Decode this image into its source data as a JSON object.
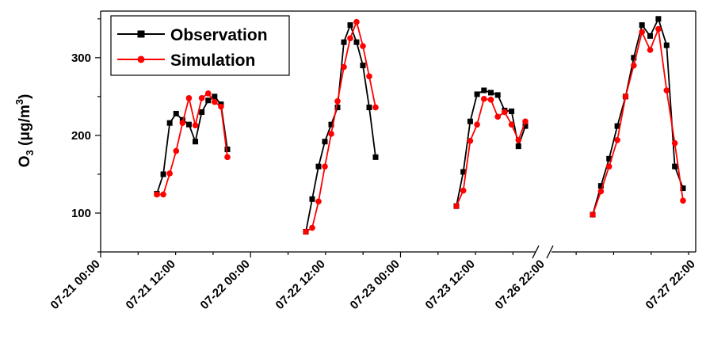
{
  "chart_data": {
    "type": "line",
    "title": "",
    "ylabel": {
      "main": "O",
      "sub": "3",
      "unit_pre": " (μg/m",
      "unit_sup": "3",
      "unit_post": ")"
    },
    "ylim": [
      50,
      360
    ],
    "yticks": [
      100,
      200,
      300
    ],
    "xlim_hours": [
      0,
      158
    ],
    "axis_break": "between 07-23 and 07-26 segments",
    "xtick_labels": [
      {
        "hour": 0,
        "label": "07-21 00:00"
      },
      {
        "hour": 24,
        "label": "07-21 12:00"
      },
      {
        "hour": 48,
        "label": "07-22 00:00"
      },
      {
        "hour": 72,
        "label": "07-22 12:00"
      },
      {
        "hour": 96,
        "label": "07-23 00:00"
      },
      {
        "hour": 120,
        "label": "07-23 12:00"
      },
      {
        "hour": 134,
        "label": "07-26 22:00"
      },
      {
        "hour": 158,
        "label": "07-27 22:00"
      }
    ],
    "legend": {
      "position": "top-left"
    },
    "series": [
      {
        "name": "Observation",
        "color": "#000000",
        "marker": "square",
        "segments": [
          [
            [
              9,
              125
            ],
            [
              10,
              150
            ],
            [
              11,
              216
            ],
            [
              12,
              228
            ],
            [
              13,
              220
            ],
            [
              14,
              214
            ],
            [
              15,
              192
            ],
            [
              16,
              230
            ],
            [
              17,
              245
            ],
            [
              18,
              250
            ],
            [
              19,
              240
            ],
            [
              20,
              182
            ]
          ],
          [
            [
              33,
              76
            ],
            [
              34,
              118
            ],
            [
              35,
              160
            ],
            [
              36,
              192
            ],
            [
              37,
              214
            ],
            [
              38,
              236
            ],
            [
              39,
              320
            ],
            [
              40,
              342
            ],
            [
              41,
              320
            ],
            [
              42,
              290
            ],
            [
              43,
              236
            ],
            [
              44,
              172
            ]
          ],
          [
            [
              57,
              109
            ],
            [
              58,
              153
            ],
            [
              59,
              218
            ],
            [
              60,
              253
            ],
            [
              61,
              258
            ],
            [
              62,
              255
            ],
            [
              63,
              252
            ],
            [
              64,
              232
            ],
            [
              65,
              231
            ],
            [
              66,
              186
            ],
            [
              67,
              212
            ]
          ],
          [
            [
              81,
              98
            ],
            [
              82,
              135
            ],
            [
              83,
              170
            ],
            [
              84,
              212
            ],
            [
              85,
              250
            ],
            [
              86,
              300
            ],
            [
              87,
              342
            ],
            [
              88,
              328
            ],
            [
              89,
              350
            ],
            [
              90,
              316
            ],
            [
              91,
              160
            ],
            [
              92,
              132
            ]
          ]
        ]
      },
      {
        "name": "Simulation",
        "color": "#ff0000",
        "marker": "circle",
        "segments": [
          [
            [
              9,
              124
            ],
            [
              10,
              124
            ],
            [
              11,
              151
            ],
            [
              12,
              180
            ],
            [
              13,
              216
            ],
            [
              14,
              248
            ],
            [
              15,
              213
            ],
            [
              16,
              248
            ],
            [
              17,
              254
            ],
            [
              18,
              243
            ],
            [
              19,
              237
            ],
            [
              20,
              172
            ]
          ],
          [
            [
              33,
              76
            ],
            [
              34,
              81
            ],
            [
              35,
              115
            ],
            [
              36,
              160
            ],
            [
              37,
              202
            ],
            [
              38,
              244
            ],
            [
              39,
              288
            ],
            [
              40,
              325
            ],
            [
              41,
              346
            ],
            [
              42,
              315
            ],
            [
              43,
              276
            ],
            [
              44,
              236
            ]
          ],
          [
            [
              57,
              109
            ],
            [
              58,
              129
            ],
            [
              59,
              193
            ],
            [
              60,
              214
            ],
            [
              61,
              247
            ],
            [
              62,
              246
            ],
            [
              63,
              224
            ],
            [
              64,
              230
            ],
            [
              65,
              214
            ],
            [
              66,
              194
            ],
            [
              67,
              218
            ]
          ],
          [
            [
              81,
              98
            ],
            [
              82,
              128
            ],
            [
              83,
              160
            ],
            [
              84,
              194
            ],
            [
              85,
              250
            ],
            [
              86,
              290
            ],
            [
              87,
              333
            ],
            [
              88,
              310
            ],
            [
              89,
              337
            ],
            [
              90,
              258
            ],
            [
              91,
              190
            ],
            [
              92,
              116
            ]
          ]
        ]
      }
    ]
  }
}
